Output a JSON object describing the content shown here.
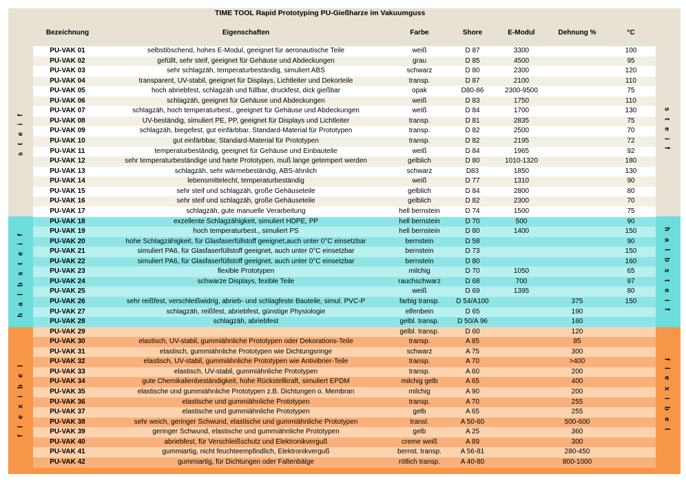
{
  "header": {
    "title": "TIME TOOL Rapid Prototyping PU-Gießharze im Vakuumguss",
    "columns": [
      "Bezeichnung",
      "Eigenschaften",
      "Farbe",
      "Shore",
      "E-Modul",
      "Dehnung %",
      "°C"
    ]
  },
  "sections": [
    {
      "label": "steif",
      "rows": [
        [
          "PU-VAK 01",
          "selbstlöschend, hohes E-Modul, geeignet für aeronautische Teile",
          "weiß",
          "D 87",
          "3300",
          null,
          "100"
        ],
        [
          "PU-VAK 02",
          "gefüllt, sehr steif, geeignet für Gehäuse und Abdeckungen",
          "grau",
          "D 85",
          "4500",
          null,
          "95"
        ],
        [
          "PU-VAK 03",
          "sehr schlagzäh, temperaturbeständig, simuliert ABS",
          "schwarz",
          "D 80",
          "2300",
          null,
          "120"
        ],
        [
          "PU-VAK 04",
          "transparent, UV-stabil, geeignet für Displays, Lichtleiter und Dekorteile",
          "transp.",
          "D 87",
          "2100",
          null,
          "110"
        ],
        [
          "PU-VAK 05",
          "hoch abriebfest, schlagzäh und füllbar, druckfest, dick gießbar",
          "opak",
          "D80-86",
          "2300-9500",
          null,
          "75"
        ],
        [
          "PU-VAK 06",
          "schlagzäh, geeignet für Gehäuse und Abdeckungen",
          "weiß",
          "D 83",
          "1750",
          null,
          "110"
        ],
        [
          "PU-VAK 07",
          "schlagzäh, hoch temperaturbest., geeignet für Gehäuse und Abdeckungen",
          "weiß",
          "D 84",
          "1700",
          null,
          "130"
        ],
        [
          "PU-VAK 08",
          "UV-beständig, simuliert PE, PP, geeignet für Displays und Lichtleiter",
          "transp.",
          "D 81",
          "2835",
          null,
          "75"
        ],
        [
          "PU-VAK 09",
          "schlagzäh, biegefest, gut einfärbbar, Standard-Material für Prototypen",
          "transp.",
          "D 82",
          "2500",
          null,
          "70"
        ],
        [
          "PU-VAK 10",
          "gut einfärbbar, Standard-Material für Prototypen",
          "transp.",
          "D 82",
          "2195",
          null,
          "72"
        ],
        [
          "PU-VAK 11",
          "temperaturbeständig, geeignet für Gehäuse und Einbauteile",
          "weiß",
          "D 84",
          "1965",
          null,
          "92"
        ],
        [
          "PU-VAK 12",
          "sehr temperaturbeständige und harte Prototypen, muß lange getempert werden",
          "gelblich",
          "D 80",
          "1010-1320",
          null,
          "180"
        ],
        [
          "PU-VAK 13",
          "schlagzäh, sehr wärmebeständig, ABS-ähnlich",
          "schwarz",
          "D83",
          "1850",
          null,
          "130"
        ],
        [
          "PU-VAK 14",
          "lebensmittelecht, temperaturbeständig",
          "weiß",
          "D 77",
          "1310",
          null,
          "90"
        ],
        [
          "PU-VAK 15",
          "sehr steif und schlagzäh, große Gehäuseteile",
          "gelblich",
          "D 84",
          "2800",
          null,
          "80"
        ],
        [
          "PU-VAK 16",
          "sehr steif und schlagzäh, große Gehäuseteile",
          "gelblich",
          "D 82",
          "2300",
          null,
          "70"
        ],
        [
          "PU-VAK 17",
          "schlagzäh, gute manuelle Verarbeitung",
          "hell bernstein",
          "D 74",
          "1500",
          null,
          "75"
        ]
      ]
    },
    {
      "label": "halbsteif",
      "rows": [
        [
          "PU-VAK 18",
          "exzellente Schlagzähigkeit, simuliert HDPE, PP",
          "hell bernstein",
          "D 70",
          "500",
          null,
          "90"
        ],
        [
          "PU-VAK 19",
          "hoch temperaturbest., simuliert PS",
          "hell bernstein",
          "D 80",
          "1400",
          null,
          "150"
        ],
        [
          "PU-VAK 20",
          "hohe Schlagzähigkeit, für Glasfaserfüllstoff geeignet,auch unter 0°C einsetzbar",
          "bernstein",
          "D 58",
          null,
          null,
          "90"
        ],
        [
          "PU-VAK 21",
          "simuliert PA6, für Glasfaserfüllstoff geeignet, auch unter 0°C einsetzbar",
          "bernstein",
          "D 73",
          null,
          null,
          "150"
        ],
        [
          "PU-VAK 22",
          "simuliert PA6, für Glasfaserfüllstoff geeignet, auch unter 0°C einsetzbar",
          "bernstein",
          "D 80",
          null,
          null,
          "160"
        ],
        [
          "PU-VAK 23",
          "flexible Prototypen",
          "milchig",
          "D 70",
          "1050",
          null,
          "65"
        ],
        [
          "PU-VAK 24",
          "schwarze Displays, fexible Teile",
          "rauchschwarz",
          "D 68",
          "700",
          null,
          "97"
        ],
        [
          "PU-VAK 25",
          null,
          "weiß",
          "D 69",
          "1395",
          null,
          "80"
        ],
        [
          "PU-VAK 26",
          "sehr reißfest, verschleißwidrig, abrieb- und schlagfeste Bauteile, simul. PVC-P",
          "farbig transp.",
          "D 54/A100",
          null,
          "375",
          "150"
        ],
        [
          "PU-VAK 27",
          "schlagzäh, reißfest, abriebfest, günstige Physiologie",
          "elfenbein",
          "D 65",
          null,
          "190",
          null
        ],
        [
          "PU-VAK 28",
          "schlagzäh, abriebfest",
          "gelbl. transp.",
          "D 50/A 96",
          null,
          "160",
          null
        ]
      ]
    },
    {
      "label": "flexibel",
      "rows": [
        [
          "PU-VAK 29",
          null,
          "gelbl. transp.",
          "D 60",
          null,
          "120",
          null
        ],
        [
          "PU-VAK 30",
          "elastisch, UV-stabil, gummiähnliche Prototypen oder Dekorations-Teile",
          "transp.",
          "A 85",
          null,
          "85",
          null
        ],
        [
          "PU-VAK 31",
          "elastisch, gummiähnliche Prototypen wie Dichtungsringe",
          "schwarz",
          "A 75",
          null,
          "300",
          null
        ],
        [
          "PU-VAK 32",
          "elastisch, UV-stabil, gummiähnliche Prototypen wie Antivibrier-Teile",
          "transp.",
          "A 70",
          null,
          ">400",
          null
        ],
        [
          "PU-VAK 33",
          "elastisch, UV-stabil, gummiähnliche Prototypen",
          "transp.",
          "A 60",
          null,
          "200",
          null
        ],
        [
          "PU-VAK 34",
          "gute Chemikalienbeständigkeit, hohe Rückstellkraft, simuliert EPDM",
          "milchig gelb",
          "A 65",
          null,
          "400",
          null
        ],
        [
          "PU-VAK 35",
          "elastische und gummiähnliche Prototypen z.B. Dichtungen o. Membran",
          "milchig",
          "A 90",
          null,
          "200",
          null
        ],
        [
          "PU-VAK 36",
          "elastische und gummiähnliche Prototypen",
          "transp.",
          "A 70",
          null,
          "255",
          null
        ],
        [
          "PU-VAK 37",
          "elastische und gummiähnliche Prototypen",
          "gelb",
          "A 65",
          null,
          "255",
          null
        ],
        [
          "PU-VAK 38",
          "sehr weich, geringer Schwund, elastische und gummiähnliche Prototypen",
          "transl.",
          "A 50-60",
          null,
          "500-600",
          null
        ],
        [
          "PU-VAK 39",
          "geringer Schwund, elastische und gummiähnliche Prototypen",
          "gelb",
          "A 25",
          null,
          "360",
          null
        ],
        [
          "PU-VAK 40",
          "abriebfest, für Verschleißschutz und Elektronikverguß",
          "creme weiß",
          "A 89",
          null,
          "300",
          null
        ],
        [
          "PU-VAK 41",
          "gummiartig, nicht feuchteempfindlich, Elektronikverguß",
          "bernst. transp.",
          "A 56-81",
          null,
          "280-450",
          null
        ],
        [
          "PU-VAK 42",
          "gummiartig, für Dichtungen oder Faltenbälge",
          "rötlich transp.",
          "A 40-80",
          null,
          "800-1000",
          null
        ]
      ]
    }
  ]
}
